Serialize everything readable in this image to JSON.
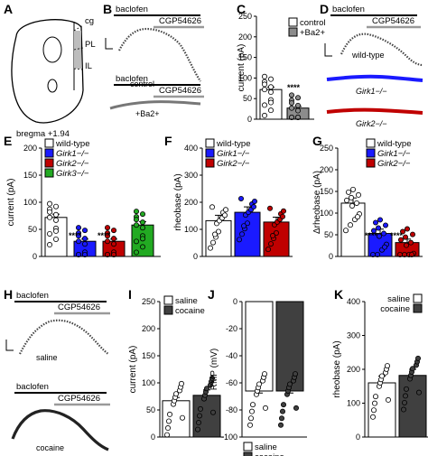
{
  "figure": {
    "panels": {
      "A": {
        "letter": "A",
        "regions": [
          "cg",
          "PL",
          "IL"
        ],
        "bregma": "bregma +1.94"
      },
      "B": {
        "letter": "B",
        "drug1": "baclofen",
        "drug2": "CGP54626",
        "trace1": "control",
        "trace2": "+Ba2+"
      },
      "C": {
        "letter": "C",
        "ylabel": "current (pA)",
        "legend": [
          "control",
          "+Ba2+"
        ],
        "stars": "****"
      },
      "D": {
        "letter": "D",
        "drug1": "baclofen",
        "drug2": "CGP54626",
        "traces": [
          "wild-type",
          "Girk1−/−",
          "Girk2−/−"
        ]
      },
      "E": {
        "letter": "E",
        "ylabel": "current (pA)",
        "legend": [
          "wild-type",
          "Girk1−/−",
          "Girk2−/−",
          "Girk3−/−"
        ],
        "stars": [
          "****",
          "****"
        ]
      },
      "F": {
        "letter": "F",
        "ylabel": "rheobase (pA)",
        "legend": [
          "wild-type",
          "Girk1−/−",
          "Girk2−/−"
        ]
      },
      "G": {
        "letter": "G",
        "ylabel": "Δrheobase (pA)",
        "legend": [
          "wild-type",
          "Girk1−/−",
          "Girk2−/−"
        ],
        "stars": [
          "****",
          "****"
        ]
      },
      "H": {
        "letter": "H",
        "drug1": "baclofen",
        "drug2": "CGP54626",
        "trace1": "saline",
        "trace2": "cocaine"
      },
      "I": {
        "letter": "I",
        "ylabel": "current (pA)",
        "legend": [
          "saline",
          "cocaine"
        ]
      },
      "J": {
        "letter": "J",
        "ylabel": "RMP (mV)",
        "legend": [
          "saline",
          "cocaine"
        ]
      },
      "K": {
        "letter": "K",
        "ylabel": "rheobase (pA)",
        "legend": [
          "saline",
          "cocaine"
        ]
      }
    }
  },
  "chart_data": [
    {
      "panel": "C",
      "type": "bar",
      "categories": [
        "control",
        "+Ba2+"
      ],
      "values": [
        72,
        27
      ],
      "errors": [
        6,
        4
      ],
      "ylim": [
        0,
        250
      ],
      "yticks": [
        0,
        50,
        100,
        150,
        200,
        250
      ],
      "colors": [
        "#ffffff",
        "#8c8c8c"
      ]
    },
    {
      "panel": "E",
      "type": "bar",
      "categories": [
        "wild-type",
        "Girk1−/−",
        "Girk2−/−",
        "Girk3−/−"
      ],
      "values": [
        72,
        28,
        28,
        58
      ],
      "errors": [
        6,
        4,
        4,
        6
      ],
      "ylim": [
        0,
        200
      ],
      "yticks": [
        0,
        50,
        100,
        150,
        200
      ],
      "colors": [
        "#ffffff",
        "#1a1aff",
        "#c00000",
        "#22aa22"
      ]
    },
    {
      "panel": "F",
      "type": "bar",
      "categories": [
        "wild-type",
        "Girk1−/−",
        "Girk2−/−"
      ],
      "values": [
        132,
        163,
        127
      ],
      "errors": [
        20,
        20,
        18
      ],
      "ylim": [
        0,
        400
      ],
      "yticks": [
        0,
        100,
        200,
        300,
        400
      ],
      "colors": [
        "#ffffff",
        "#1a1aff",
        "#c00000"
      ]
    },
    {
      "panel": "G",
      "type": "bar",
      "categories": [
        "wild-type",
        "Girk1−/−",
        "Girk2−/−"
      ],
      "values": [
        123,
        53,
        32
      ],
      "errors": [
        12,
        10,
        8
      ],
      "ylim": [
        0,
        250
      ],
      "yticks": [
        0,
        50,
        100,
        150,
        200,
        250
      ],
      "colors": [
        "#ffffff",
        "#1a1aff",
        "#c00000"
      ]
    },
    {
      "panel": "I",
      "type": "bar",
      "categories": [
        "saline",
        "cocaine"
      ],
      "values": [
        67,
        77
      ],
      "errors": [
        6,
        10
      ],
      "ylim": [
        0,
        250
      ],
      "yticks": [
        0,
        50,
        100,
        150,
        200,
        250
      ],
      "colors": [
        "#ffffff",
        "#404040"
      ]
    },
    {
      "panel": "J",
      "type": "bar",
      "categories": [
        "saline",
        "cocaine"
      ],
      "values": [
        -66,
        -66
      ],
      "errors": [
        1.5,
        1.5
      ],
      "ylim": [
        -100,
        0
      ],
      "yticks": [
        0,
        -20,
        -40,
        -60,
        -80,
        -100
      ],
      "colors": [
        "#ffffff",
        "#404040"
      ]
    },
    {
      "panel": "K",
      "type": "bar",
      "categories": [
        "saline",
        "cocaine"
      ],
      "values": [
        160,
        182
      ],
      "errors": [
        20,
        18
      ],
      "ylim": [
        0,
        400
      ],
      "yticks": [
        0,
        100,
        200,
        300,
        400
      ],
      "colors": [
        "#ffffff",
        "#404040"
      ]
    }
  ]
}
